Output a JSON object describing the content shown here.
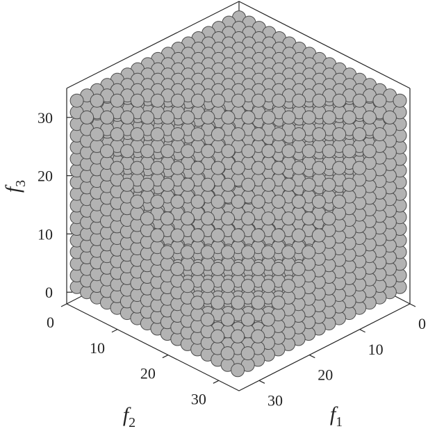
{
  "chart_data": {
    "type": "scatter",
    "projection": "3d-isometric",
    "title": "",
    "axes": {
      "f1": {
        "label": "f",
        "subscript": "1",
        "range": [
          0,
          34
        ],
        "ticks": [
          0,
          10,
          20,
          30
        ]
      },
      "f2": {
        "label": "f",
        "subscript": "2",
        "range": [
          0,
          34
        ],
        "ticks": [
          0,
          10,
          20,
          30
        ]
      },
      "f3": {
        "label": "f",
        "subscript": "3",
        "range": [
          -2,
          35
        ],
        "ticks": [
          0,
          10,
          20,
          30
        ]
      }
    },
    "point_cloud": {
      "description_rule": "lattice points (f1, f2, f3) with integer spacing filling the region f1 >= 0, f2 >= 0, f3 >= 0 and f1 + f2 + f3 <= 64 clipped to f1 <= 32, f2 <= 32, f3 <= 32",
      "grid_step": 2,
      "f_max": 32,
      "sum_max": 64
    },
    "grid": false,
    "legend": "none",
    "colors": {
      "marker_fill": "#b3b3b3",
      "marker_edge": "#4a4a4a",
      "axis": "#222222"
    }
  }
}
